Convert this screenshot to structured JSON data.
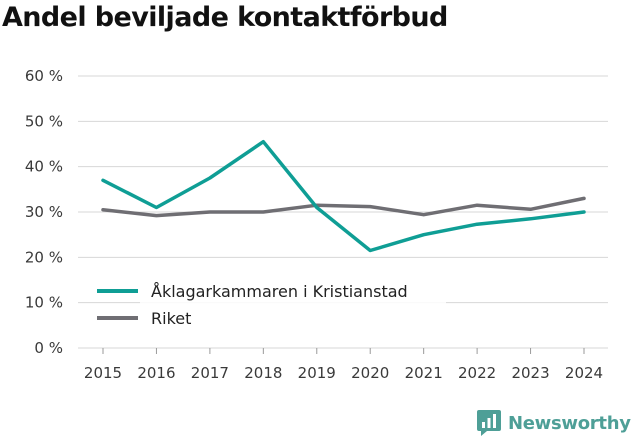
{
  "colors": {
    "series_primary": "#0f9e95",
    "series_secondary": "#6f6e73",
    "grid": "#d7d7d7",
    "axis_text": "#3a3a3a",
    "brand": "#4e9f97"
  },
  "brand": {
    "name": "Newsworthy",
    "logo_icon": "bar-chart-speech-bubble-icon"
  },
  "chart_data": {
    "type": "line",
    "title": "Andel beviljade kontaktförbud",
    "xlabel": "",
    "ylabel": "",
    "x": [
      "2015",
      "2016",
      "2017",
      "2018",
      "2019",
      "2020",
      "2021",
      "2022",
      "2023",
      "2024"
    ],
    "ylim": [
      0,
      60
    ],
    "yticks": [
      0,
      10,
      20,
      30,
      40,
      50,
      60
    ],
    "ytick_labels": [
      "0 %",
      "10 %",
      "20 %",
      "30 %",
      "40 %",
      "50 %",
      "60 %"
    ],
    "grid": true,
    "legend_position": "bottom-left",
    "series": [
      {
        "name": "Åklagarkammaren i Kristianstad",
        "color": "#0f9e95",
        "values": [
          37,
          31,
          37.5,
          45.5,
          31,
          21.5,
          25,
          27.3,
          28.5,
          30
        ]
      },
      {
        "name": "Riket",
        "color": "#6f6e73",
        "values": [
          30.5,
          29.2,
          30,
          30,
          31.5,
          31.2,
          29.4,
          31.5,
          30.6,
          33
        ]
      }
    ]
  }
}
